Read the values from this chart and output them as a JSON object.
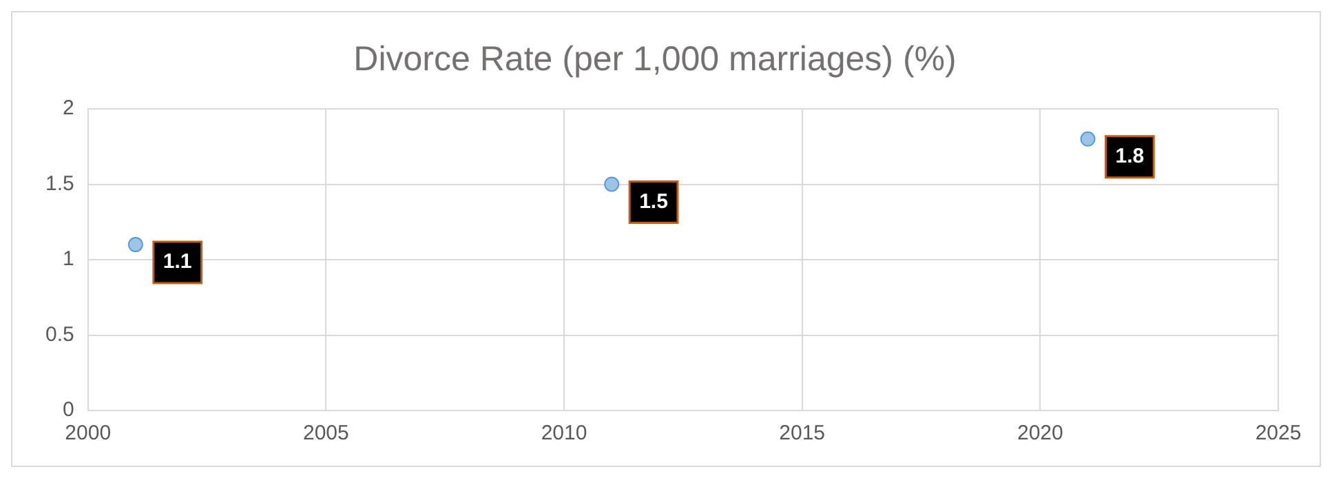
{
  "chart_data": {
    "type": "scatter",
    "title": "Divorce Rate (per 1,000 marriages) (%)",
    "x": [
      2001,
      2011,
      2021
    ],
    "series": [
      {
        "color": "#9dc3e6",
        "values": [
          1.1,
          1.5,
          1.8
        ]
      }
    ],
    "xlim": [
      2000,
      2025
    ],
    "xticks": [
      2000,
      2005,
      2010,
      2015,
      2020,
      2025
    ],
    "ylim": [
      0,
      2
    ],
    "yticks": [
      0,
      0.5,
      1,
      1.5,
      2
    ],
    "grid": true,
    "legend": false,
    "marker": "circle",
    "data_labels": true
  }
}
